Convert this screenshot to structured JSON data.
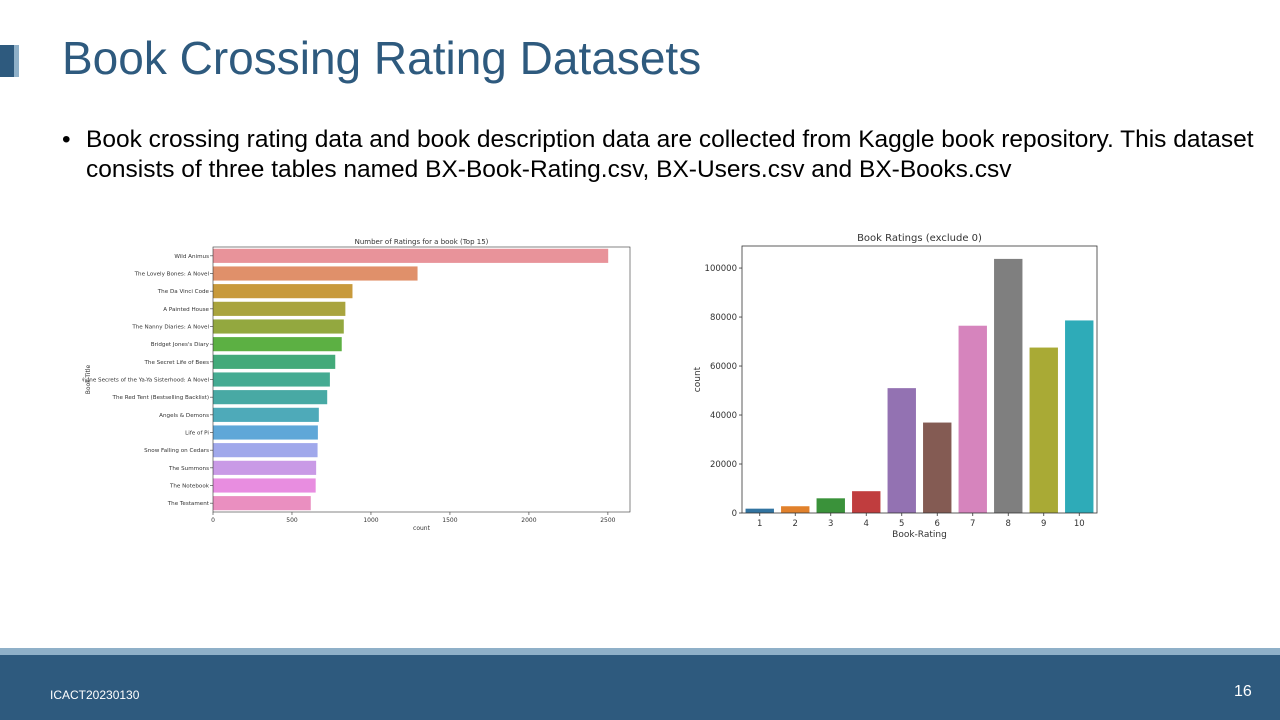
{
  "slide": {
    "title": "Book Crossing Rating Datasets",
    "bullet_symbol": "•",
    "bullet_text": "Book crossing rating data and book description data are collected from Kaggle book repository. This dataset consists of three tables named BX-Book-Rating.csv, BX-Users.csv and BX-Books.csv",
    "footer_text": "ICACT20230130",
    "page_number": "16",
    "colors": {
      "title": "#2e5a7e",
      "footer_bar": "#2e5a7e",
      "footer_strip": "#8fb0c8"
    }
  },
  "chart_data": [
    {
      "type": "bar",
      "orientation": "horizontal",
      "title": "Number of Ratings for a book (Top 15)",
      "xlabel": "count",
      "ylabel": "Book-Title",
      "categories": [
        "Wild Animus",
        "The Lovely Bones: A Novel",
        "The Da Vinci Code",
        "A Painted House",
        "The Nanny Diaries: A Novel",
        "Bridget Jones's Diary",
        "The Secret Life of Bees",
        "Divine Secrets of the Ya-Ya Sisterhood: A Novel",
        "The Red Tent (Bestselling Backlist)",
        "Angels & Demons",
        "Life of Pi",
        "Snow Falling on Cedars",
        "The Summons",
        "The Notebook",
        "The Testament"
      ],
      "values": [
        2502,
        1295,
        883,
        838,
        828,
        815,
        774,
        740,
        723,
        670,
        664,
        662,
        653,
        650,
        619
      ],
      "xlim": [
        0,
        2640
      ],
      "xticks": [
        0,
        500,
        1000,
        1500,
        2000,
        2500
      ],
      "grid": false,
      "colors": [
        "#e8939a",
        "#e0906a",
        "#c89a3c",
        "#a9a43e",
        "#93a83f",
        "#5cb043",
        "#43aa7a",
        "#45ab92",
        "#48a9a4",
        "#4eaab9",
        "#5fa7d8",
        "#a0a8eb",
        "#c99ae6",
        "#e88de0",
        "#ea8fc0"
      ]
    },
    {
      "type": "bar",
      "title": "Book Ratings (exclude 0)",
      "xlabel": "Book-Rating",
      "ylabel": "count",
      "categories": [
        "1",
        "2",
        "3",
        "4",
        "5",
        "6",
        "7",
        "8",
        "9",
        "10"
      ],
      "values": [
        1770,
        2759,
        5996,
        8904,
        50974,
        36924,
        76457,
        103736,
        67541,
        78610
      ],
      "ylim": [
        0,
        109000
      ],
      "yticks": [
        0,
        20000,
        40000,
        60000,
        80000,
        100000
      ],
      "grid": false,
      "colors": [
        "#3274a1",
        "#e1812c",
        "#3a923a",
        "#c03d3e",
        "#9372b2",
        "#845b53",
        "#d684bd",
        "#7f7f7f",
        "#a9aa35",
        "#2eabb8"
      ]
    }
  ]
}
